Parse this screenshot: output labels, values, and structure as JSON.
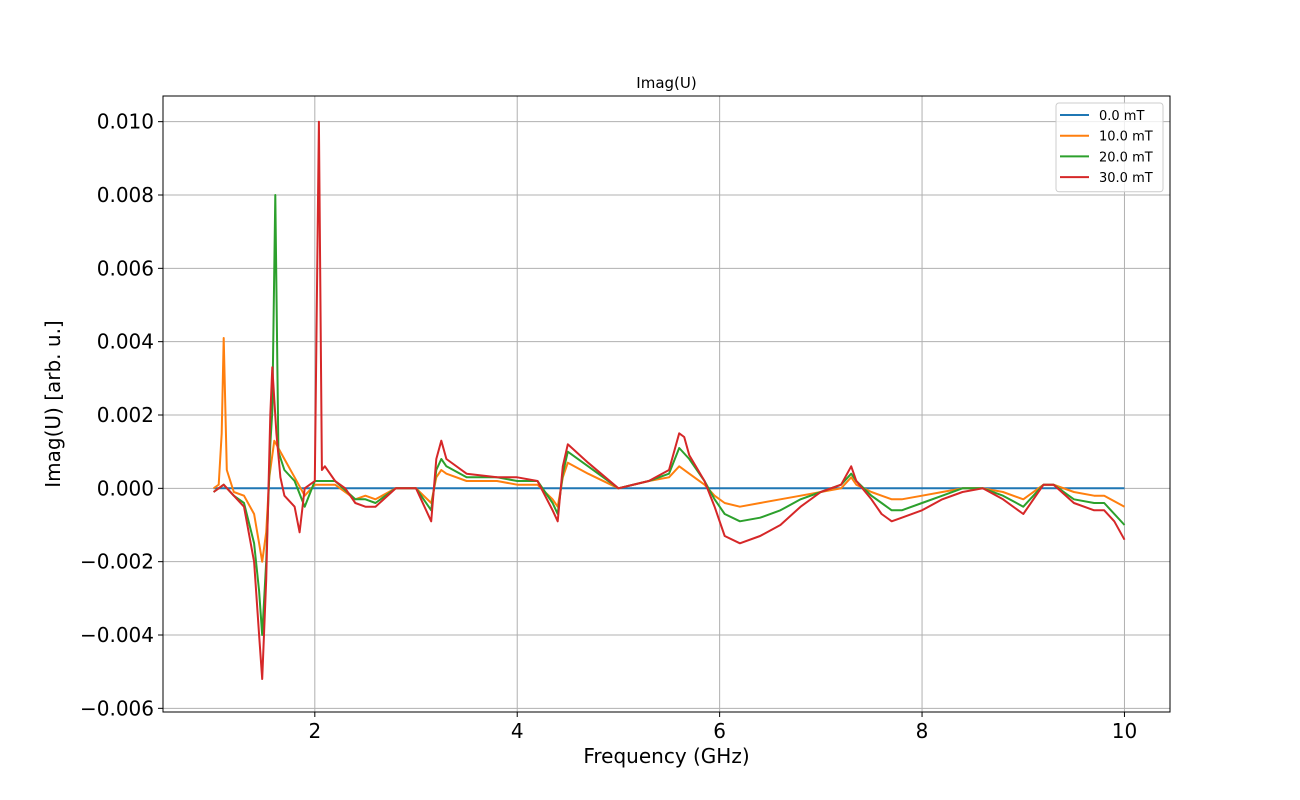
{
  "chart_data": {
    "type": "line",
    "title": "Imag(U)",
    "xlabel": "Frequency (GHz)",
    "ylabel": "Imag(U) [arb. u.]",
    "xlim": [
      0.5,
      10.45
    ],
    "ylim": [
      -0.0061,
      0.0107
    ],
    "grid": true,
    "legend_position": "top-right",
    "x_ticks": [
      2,
      4,
      6,
      8,
      10
    ],
    "x_tick_labels": [
      "2",
      "4",
      "6",
      "8",
      "10"
    ],
    "y_ticks": [
      -0.006,
      -0.004,
      -0.002,
      0.0,
      0.002,
      0.004,
      0.006,
      0.008,
      0.01
    ],
    "y_tick_labels": [
      "−0.006",
      "−0.004",
      "−0.002",
      "0.000",
      "0.002",
      "0.004",
      "0.006",
      "0.008",
      "0.010"
    ],
    "series": [
      {
        "name": "0.0 mT",
        "color": "#1f77b4",
        "x": [
          1.0,
          10.0
        ],
        "y": [
          0.0,
          0.0
        ]
      },
      {
        "name": "10.0 mT",
        "color": "#ff7f0e",
        "x": [
          1.0,
          1.05,
          1.08,
          1.1,
          1.13,
          1.2,
          1.3,
          1.4,
          1.45,
          1.48,
          1.52,
          1.55,
          1.6,
          1.7,
          1.8,
          1.9,
          2.0,
          2.2,
          2.4,
          2.5,
          2.6,
          2.8,
          3.0,
          3.15,
          3.2,
          3.25,
          3.3,
          3.5,
          3.8,
          4.0,
          4.2,
          4.35,
          4.4,
          4.45,
          4.5,
          4.7,
          5.0,
          5.3,
          5.5,
          5.6,
          5.7,
          5.85,
          5.95,
          6.05,
          6.2,
          6.4,
          6.6,
          6.8,
          7.0,
          7.2,
          7.3,
          7.35,
          7.5,
          7.6,
          7.7,
          7.8,
          8.0,
          8.2,
          8.4,
          8.6,
          8.8,
          9.0,
          9.2,
          9.3,
          9.5,
          9.7,
          9.8,
          10.0
        ],
        "y": [
          0.0,
          0.0001,
          0.0015,
          0.0041,
          0.0005,
          -0.0001,
          -0.0002,
          -0.0007,
          -0.0015,
          -0.002,
          -0.0012,
          0.0003,
          0.0013,
          0.0008,
          0.0003,
          -0.0002,
          0.0001,
          0.0001,
          -0.0003,
          -0.0002,
          -0.0003,
          0.0,
          0.0,
          -0.0004,
          0.0003,
          0.0005,
          0.0004,
          0.0002,
          0.0002,
          0.0001,
          0.0001,
          -0.0003,
          -0.0005,
          0.0003,
          0.0007,
          0.0004,
          0.0,
          0.0002,
          0.0003,
          0.0006,
          0.0004,
          0.0001,
          -0.0002,
          -0.0004,
          -0.0005,
          -0.0004,
          -0.0003,
          -0.0002,
          -0.0001,
          0.0,
          0.0003,
          0.0001,
          -0.0001,
          -0.0002,
          -0.0003,
          -0.0003,
          -0.0002,
          -0.0001,
          0.0,
          0.0,
          -0.0001,
          -0.0003,
          0.0001,
          0.0001,
          -0.0001,
          -0.0002,
          -0.0002,
          -0.0005
        ]
      },
      {
        "name": "20.0 mT",
        "color": "#2ca02c",
        "x": [
          1.0,
          1.1,
          1.2,
          1.3,
          1.4,
          1.45,
          1.48,
          1.52,
          1.56,
          1.58,
          1.61,
          1.64,
          1.7,
          1.8,
          1.9,
          2.0,
          2.2,
          2.4,
          2.5,
          2.6,
          2.8,
          3.0,
          3.15,
          3.2,
          3.25,
          3.3,
          3.5,
          3.8,
          4.0,
          4.2,
          4.35,
          4.4,
          4.45,
          4.5,
          4.7,
          5.0,
          5.3,
          5.5,
          5.6,
          5.7,
          5.85,
          5.95,
          6.05,
          6.2,
          6.4,
          6.6,
          6.8,
          7.0,
          7.2,
          7.3,
          7.35,
          7.5,
          7.6,
          7.7,
          7.8,
          8.0,
          8.2,
          8.4,
          8.6,
          8.8,
          9.0,
          9.2,
          9.3,
          9.5,
          9.7,
          9.8,
          10.0
        ],
        "y": [
          -0.0001,
          0.0001,
          -0.0002,
          -0.0004,
          -0.0015,
          -0.0028,
          -0.004,
          -0.002,
          0.0012,
          0.0021,
          0.008,
          0.001,
          0.0005,
          0.0002,
          -0.0005,
          0.0002,
          0.0002,
          -0.0003,
          -0.0003,
          -0.0004,
          0.0,
          0.0,
          -0.0006,
          0.0005,
          0.0008,
          0.0006,
          0.0003,
          0.0003,
          0.0002,
          0.0002,
          -0.0004,
          -0.0007,
          0.0004,
          0.001,
          0.0006,
          0.0,
          0.0002,
          0.0004,
          0.0011,
          0.0008,
          0.0002,
          -0.0003,
          -0.0007,
          -0.0009,
          -0.0008,
          -0.0006,
          -0.0003,
          -0.0001,
          0.0001,
          0.0004,
          0.0002,
          -0.0002,
          -0.0004,
          -0.0006,
          -0.0006,
          -0.0004,
          -0.0002,
          0.0,
          0.0,
          -0.0002,
          -0.0005,
          0.0001,
          0.0001,
          -0.0003,
          -0.0004,
          -0.0004,
          -0.001
        ]
      },
      {
        "name": "30.0 mT",
        "color": "#d62728",
        "x": [
          1.0,
          1.1,
          1.2,
          1.3,
          1.4,
          1.45,
          1.48,
          1.52,
          1.56,
          1.58,
          1.62,
          1.66,
          1.7,
          1.8,
          1.85,
          1.9,
          2.0,
          2.04,
          2.07,
          2.1,
          2.2,
          2.3,
          2.4,
          2.5,
          2.6,
          2.8,
          3.0,
          3.15,
          3.2,
          3.25,
          3.3,
          3.5,
          3.8,
          4.0,
          4.2,
          4.35,
          4.4,
          4.45,
          4.5,
          4.7,
          5.0,
          5.3,
          5.5,
          5.6,
          5.65,
          5.7,
          5.85,
          5.95,
          6.05,
          6.2,
          6.4,
          6.6,
          6.8,
          7.0,
          7.2,
          7.3,
          7.35,
          7.5,
          7.6,
          7.7,
          7.8,
          8.0,
          8.2,
          8.4,
          8.6,
          8.8,
          9.0,
          9.2,
          9.3,
          9.5,
          9.7,
          9.8,
          9.9,
          10.0
        ],
        "y": [
          -0.0001,
          0.0001,
          -0.0002,
          -0.0005,
          -0.002,
          -0.004,
          -0.0052,
          -0.0025,
          0.002,
          0.0033,
          0.0015,
          0.0003,
          -0.0002,
          -0.0005,
          -0.0012,
          0.0,
          0.0002,
          0.01,
          0.0005,
          0.0006,
          0.0002,
          0.0,
          -0.0004,
          -0.0005,
          -0.0005,
          0.0,
          0.0,
          -0.0009,
          0.0008,
          0.0013,
          0.0008,
          0.0004,
          0.0003,
          0.0003,
          0.0002,
          -0.0006,
          -0.0009,
          0.0006,
          0.0012,
          0.0007,
          0.0,
          0.0002,
          0.0005,
          0.0015,
          0.0014,
          0.0009,
          0.0002,
          -0.0005,
          -0.0013,
          -0.0015,
          -0.0013,
          -0.001,
          -0.0005,
          -0.0001,
          0.0001,
          0.0006,
          0.0002,
          -0.0003,
          -0.0007,
          -0.0009,
          -0.0008,
          -0.0006,
          -0.0003,
          -0.0001,
          0.0,
          -0.0003,
          -0.0007,
          0.0001,
          0.0001,
          -0.0004,
          -0.0006,
          -0.0006,
          -0.0009,
          -0.0014
        ]
      }
    ]
  }
}
